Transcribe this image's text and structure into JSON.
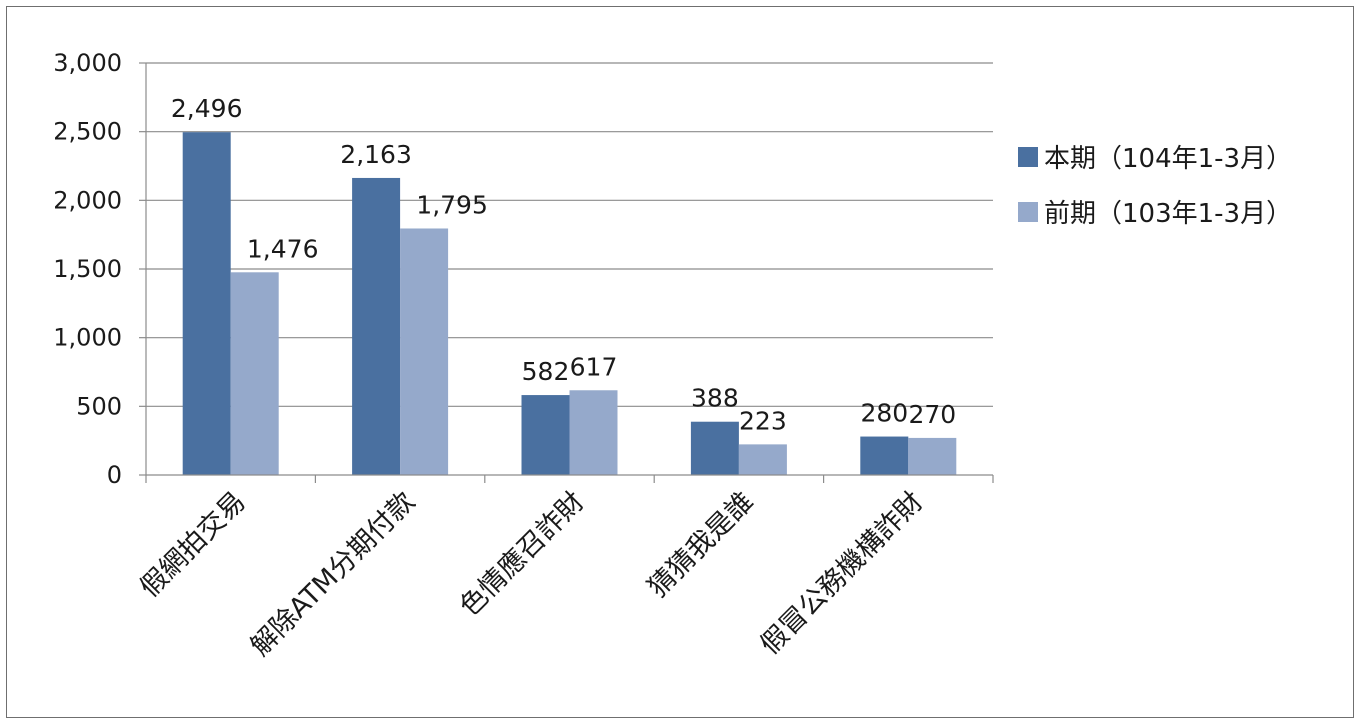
{
  "chart_data": {
    "type": "bar",
    "categories": [
      "假網拍交易",
      "解除ATM分期付款",
      "色情應召詐財",
      "猜猜我是誰",
      "假冒公務機構詐財"
    ],
    "series": [
      {
        "name": "本期（104年1-3月）",
        "values": [
          2496,
          2163,
          582,
          388,
          280
        ],
        "color": "#4a70a0"
      },
      {
        "name": "前期（103年1-3月）",
        "values": [
          1476,
          1795,
          617,
          223,
          270
        ],
        "color": "#95a9cb"
      }
    ],
    "data_labels": [
      [
        "2,496",
        "2,163",
        "582",
        "388",
        "280"
      ],
      [
        "1,476",
        "1,795",
        "617",
        "223",
        "270"
      ]
    ],
    "y_ticks": [
      "0",
      "500",
      "1,000",
      "1,500",
      "2,000",
      "2,500",
      "3,000"
    ],
    "ylim": [
      0,
      3000
    ],
    "grid": true,
    "legend_position": "right",
    "title": "",
    "xlabel": "",
    "ylabel": ""
  }
}
